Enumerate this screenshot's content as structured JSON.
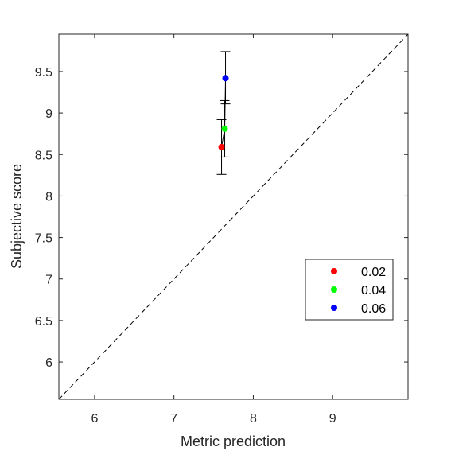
{
  "chart_data": {
    "type": "scatter",
    "xlabel": "Metric prediction",
    "ylabel": "Subjective score",
    "xlim": [
      5.55,
      9.95
    ],
    "ylim": [
      5.55,
      9.95
    ],
    "x_ticks": [
      6,
      7,
      8,
      9
    ],
    "y_ticks": [
      6,
      6.5,
      7,
      7.5,
      8,
      8.5,
      9,
      9.5
    ],
    "x_tick_labels": [
      "6",
      "7",
      "8",
      "9"
    ],
    "y_tick_labels": [
      "6",
      "6.5",
      "7",
      "7.5",
      "8",
      "8.5",
      "9",
      "9.5"
    ],
    "grid": false,
    "reference_line": "y = x (dashed)",
    "legend_position": "lower-right",
    "series": [
      {
        "name": "0.02",
        "color": "#ff0000",
        "x": 7.6,
        "y": 8.59,
        "err_low": 8.26,
        "err_high": 8.92
      },
      {
        "name": "0.04",
        "color": "#00ff00",
        "x": 7.64,
        "y": 8.81,
        "err_low": 8.47,
        "err_high": 9.15
      },
      {
        "name": "0.06",
        "color": "#0000ff",
        "x": 7.65,
        "y": 9.42,
        "err_low": 9.11,
        "err_high": 9.74
      }
    ]
  }
}
